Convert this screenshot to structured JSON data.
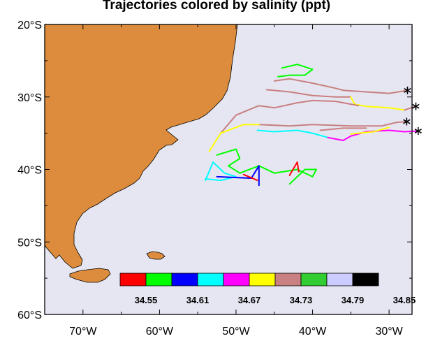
{
  "title": "Trajectories colored by salinity (ppt)",
  "map": {
    "ocean_color": "#e6e6f2",
    "land_color": "#dc8c3c",
    "lon_range": [
      -75,
      -27
    ],
    "lat_range": [
      -60,
      -20
    ],
    "lat_ticks": [
      {
        "value": -20,
        "label": "20°S"
      },
      {
        "value": -30,
        "label": "30°S"
      },
      {
        "value": -40,
        "label": "40°S"
      },
      {
        "value": -50,
        "label": "50°S"
      },
      {
        "value": -60,
        "label": "60°S"
      }
    ],
    "lon_ticks": [
      {
        "value": -70,
        "label": "70°W"
      },
      {
        "value": -60,
        "label": "60°W"
      },
      {
        "value": -50,
        "label": "50°W"
      },
      {
        "value": -40,
        "label": "40°W"
      },
      {
        "value": -30,
        "label": "30°W"
      }
    ]
  },
  "colorbar": {
    "colors": [
      "#ff0000",
      "#00ff00",
      "#0000ff",
      "#00ffff",
      "#ff00ff",
      "#ffff00",
      "#c88080",
      "#32cd32",
      "#ccccff",
      "#000000"
    ],
    "labels": [
      "34.55",
      "34.61",
      "34.67",
      "34.73",
      "34.79",
      "34.85"
    ]
  },
  "trajectories": [
    {
      "segments": [
        {
          "color": "#c88080",
          "points": [
            [
              -45,
              -27.8
            ],
            [
              -43,
              -27.5
            ],
            [
              -40,
              -28.1
            ],
            [
              -37,
              -28.8
            ],
            [
              -35.9,
              -29.1
            ]
          ]
        },
        {
          "color": "#c88080",
          "points": [
            [
              -35.9,
              -29.1
            ],
            [
              -33,
              -29.3
            ],
            [
              -30,
              -29.5
            ],
            [
              -27.6,
              -29.1
            ]
          ]
        }
      ],
      "start": [
        -27.6,
        -29.1
      ]
    },
    {
      "segments": [
        {
          "color": "#c88080",
          "points": [
            [
              -46,
              -29
            ],
            [
              -43,
              -29.3
            ],
            [
              -40,
              -29.8
            ],
            [
              -37,
              -30
            ],
            [
              -35,
              -30
            ]
          ]
        },
        {
          "color": "#ffff00",
          "points": [
            [
              -35,
              -30
            ],
            [
              -34.5,
              -31
            ],
            [
              -33,
              -31.3
            ],
            [
              -30,
              -31.5
            ],
            [
              -28,
              -31.8
            ]
          ]
        },
        {
          "color": "#c88080",
          "points": [
            [
              -28,
              -31.8
            ],
            [
              -26.5,
              -31.3
            ]
          ]
        }
      ],
      "start": [
        -26.5,
        -31.3
      ]
    },
    {
      "segments": [
        {
          "color": "#c88080",
          "points": [
            [
              -52,
              -35
            ],
            [
              -50,
              -32.5
            ],
            [
              -47,
              -31.2
            ],
            [
              -45,
              -31.5
            ],
            [
              -42,
              -30.8
            ],
            [
              -40,
              -30.5
            ],
            [
              -37,
              -30.6
            ],
            [
              -34,
              -31.2
            ]
          ]
        },
        {
          "color": "#c88080",
          "points": [
            [
              -47,
              -33.8
            ],
            [
              -43,
              -34
            ],
            [
              -40,
              -33.8
            ],
            [
              -35,
              -34
            ],
            [
              -31,
              -34
            ],
            [
              -29,
              -33.5
            ],
            [
              -27.7,
              -33.4
            ]
          ]
        },
        {
          "color": "#ffff00",
          "points": [
            [
              -53.5,
              -37.5
            ],
            [
              -52,
              -35
            ],
            [
              -49,
              -33.8
            ],
            [
              -47,
              -33.8
            ]
          ]
        }
      ],
      "start": [
        -27.7,
        -33.4
      ]
    },
    {
      "segments": [
        {
          "color": "#00ffff",
          "points": [
            [
              -47.2,
              -34.6
            ],
            [
              -45,
              -34.8
            ],
            [
              -42,
              -34.6
            ],
            [
              -40,
              -35
            ],
            [
              -38,
              -35.6
            ]
          ]
        },
        {
          "color": "#ff00ff",
          "points": [
            [
              -38,
              -35.6
            ],
            [
              -36,
              -36
            ],
            [
              -35,
              -35.4
            ],
            [
              -33,
              -34.8
            ],
            [
              -30,
              -34.6
            ],
            [
              -28,
              -34.8
            ],
            [
              -26.2,
              -34.7
            ]
          ]
        },
        {
          "color": "#ffff00",
          "points": [
            [
              -35,
              -35.1
            ],
            [
              -32,
              -34.8
            ],
            [
              -30,
              -34.2
            ]
          ]
        },
        {
          "color": "#c88080",
          "points": [
            [
              -39,
              -34.6
            ],
            [
              -36,
              -34.3
            ],
            [
              -33,
              -34.3
            ]
          ]
        }
      ],
      "start": [
        -26.2,
        -34.7
      ]
    },
    {
      "segments": [
        {
          "color": "#00ff00",
          "points": [
            [
              -44,
              -26
            ],
            [
              -42,
              -25.5
            ],
            [
              -40,
              -26.2
            ],
            [
              -41,
              -27
            ],
            [
              -43,
              -27
            ],
            [
              -44.5,
              -27.2
            ]
          ]
        },
        {
          "color": "#00ff00",
          "points": [
            [
              -52.5,
              -38
            ],
            [
              -50,
              -37.2
            ],
            [
              -49.5,
              -38.5
            ],
            [
              -51,
              -39.5
            ],
            [
              -49.5,
              -40.5
            ],
            [
              -47,
              -39.5
            ],
            [
              -45,
              -40.5
            ],
            [
              -42,
              -40
            ],
            [
              -40,
              -41
            ],
            [
              -39.5,
              -40
            ],
            [
              -41,
              -40
            ],
            [
              -43,
              -42
            ]
          ]
        },
        {
          "color": "#00ffff",
          "points": [
            [
              -54,
              -41.5
            ],
            [
              -53,
              -39
            ],
            [
              -51.5,
              -40.5
            ],
            [
              -50,
              -41
            ],
            [
              -52,
              -41.5
            ],
            [
              -54,
              -41.3
            ]
          ]
        },
        {
          "color": "#0000ff",
          "points": [
            [
              -52.5,
              -41
            ],
            [
              -48,
              -41.2
            ],
            [
              -47,
              -39.5
            ],
            [
              -47,
              -42.2
            ]
          ]
        },
        {
          "color": "#ff0000",
          "points": [
            [
              -43,
              -40.8
            ],
            [
              -42,
              -39
            ],
            [
              -41.8,
              -40.3
            ]
          ]
        },
        {
          "color": "#ff0000",
          "points": [
            [
              -49,
              -40.7
            ],
            [
              -47.2,
              -41.5
            ]
          ]
        }
      ],
      "start": null
    }
  ]
}
